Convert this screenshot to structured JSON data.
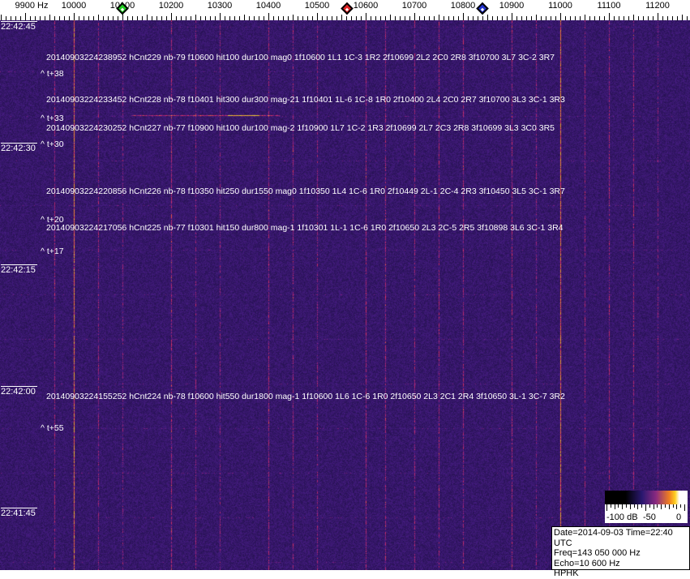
{
  "chart_data": {
    "type": "heatmap",
    "title": "",
    "x_unit": "Hz",
    "x_ticks": [
      "9900 Hz",
      "10000",
      "10100",
      "10200",
      "10300",
      "10400",
      "10500",
      "10600",
      "10700",
      "10800",
      "10900",
      "11000",
      "11100",
      "11200"
    ],
    "x_tick_values": [
      9900,
      10000,
      10100,
      10200,
      10300,
      10400,
      10500,
      10600,
      10700,
      10800,
      10900,
      11000,
      11100,
      11200
    ],
    "xlim": [
      9800,
      11295
    ],
    "time_labels": [
      "22:42:45",
      "22:42:30",
      "22:42:15",
      "22:42:00",
      "22:41:45"
    ],
    "markers": [
      {
        "freq": 10100,
        "color": "#22cc22"
      },
      {
        "freq": 10562,
        "color": "#dd2222"
      },
      {
        "freq": 10840,
        "color": "#2233cc"
      }
    ],
    "strong_carriers_hz": [
      10000,
      11000
    ],
    "colorbar": {
      "ticks": [
        "-100 dB",
        "-50",
        "0"
      ],
      "range_db": [
        -100,
        0
      ]
    },
    "annotations": [
      "20140903224238952 hCnt229 nb-79 f10600 hit100 dur100 mag0 1f10600 1L1 1C-3 1R2 2f10699 2L2 2C0 2R8 3f10700 3L7 3C-2 3R7",
      "^ t+38",
      "20140903224233452 hCnt228 nb-78 f10401 hit300 dur300 mag-21 1f10401 1L-6 1C-8 1R0 2f10400 2L4 2C0 2R7 3f10700 3L3 3C-1 3R3",
      "^ t+33",
      "20140903224230252 hCnt227 nb-77 f10900 hit100 dur100 mag-2 1f10900 1L7 1C-2 1R3 2f10699 2L7 2C3 2R8 3f10699 3L3 3C0 3R5",
      "^ t+30",
      "20140903224220856 hCnt226 nb-78 f10350 hit250 dur1550 mag0 1f10350 1L4 1C-6 1R0 2f10449 2L-1 2C-4 2R3 3f10450 3L5 3C-1 3R7",
      "^ t+20",
      "20140903224217056 hCnt225 nb-77 f10301 hit150 dur800 mag-1 1f10301 1L-1 1C-6 1R0 2f10650 2L3 2C-5 2R5 3f10898 3L6 3C-1 3R4",
      "^ t+17",
      "20140903224155252 hCnt224 nb-78 f10600 hit550 dur1800 mag-1 1f10600 1L6 1C-6 1R0 2f10650 2L3 2C1 2R4 3f10650 3L-1 3C-7 3R2",
      "^ t+55"
    ]
  },
  "info": {
    "date_time": "Date=2014-09-03 Time=22:40 UTC",
    "freq": "Freq=143 050 000 Hz",
    "echo": "Echo=10 600 Hz",
    "station": "HPHK"
  }
}
